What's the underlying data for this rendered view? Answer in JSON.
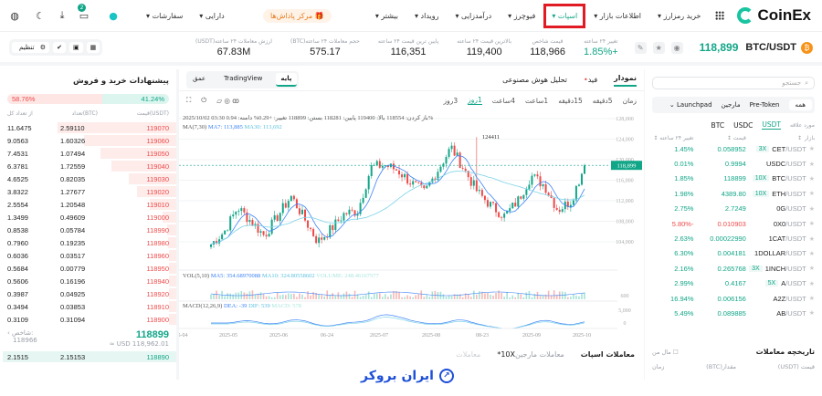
{
  "nav": {
    "brand": "CoinEx",
    "items": [
      "خرید رمزارز",
      "اطلاعات بازار",
      "اسپات",
      "فیوچرز",
      "درآمدزایی",
      "رویداد",
      "بیشتر"
    ],
    "highlighted": "اسپات",
    "rewards": "مرکز پاداش‌ها",
    "assets": "دارایی",
    "orders": "سفارشات",
    "notif_count": "2",
    "icons": [
      "grid-icon",
      "gift-icon",
      "avatar-icon",
      "chat-icon",
      "download-icon",
      "moon-icon",
      "globe-icon"
    ]
  },
  "ticker": {
    "pair": "BTC/USDT",
    "last": "118,899",
    "stats": [
      {
        "label": "تغییر ۲۴ ساعته",
        "value": "+1.85%"
      },
      {
        "label": "قیمت شاخص",
        "value": "118,966"
      },
      {
        "label": "بالاترین قیمت ۲۴ ساعته",
        "value": "119,400"
      },
      {
        "label": "پایین ترین قیمت ۲۴ ساعته",
        "value": "116,351"
      },
      {
        "label": "حجم معاملات ۲۴ ساعته(BTC)",
        "value": "575.17"
      },
      {
        "label": "ارزش معاملات ۲۴ ساعته(USDT)",
        "value": "67.83M"
      }
    ],
    "settings": "تنظیم"
  },
  "book": {
    "title": "پیشنهادات خرید و فروش",
    "sell_ratio": "58.76%",
    "buy_ratio": "41.24%",
    "headers": [
      "قیمت(USDT)",
      "تعداد(BTC)",
      "از تعداد کل"
    ],
    "asks": [
      [
        "119070",
        "2.59110",
        "11.6475"
      ],
      [
        "119060",
        "1.60326",
        "9.0563"
      ],
      [
        "119050",
        "1.07494",
        "7.4531"
      ],
      [
        "119040",
        "1.72559",
        "6.3781"
      ],
      [
        "119030",
        "0.82035",
        "4.6525"
      ],
      [
        "119020",
        "1.27677",
        "3.8322"
      ],
      [
        "119010",
        "1.20548",
        "2.5554"
      ],
      [
        "119000",
        "0.49609",
        "1.3499"
      ],
      [
        "118990",
        "0.05784",
        "0.8538"
      ],
      [
        "118980",
        "0.19235",
        "0.7960"
      ],
      [
        "118960",
        "0.03517",
        "0.6036"
      ],
      [
        "118950",
        "0.00779",
        "0.5684"
      ],
      [
        "118940",
        "0.16196",
        "0.5606"
      ],
      [
        "118920",
        "0.04925",
        "0.3987"
      ],
      [
        "118910",
        "0.03853",
        "0.3494"
      ],
      [
        "118900",
        "0.31094",
        "0.3109"
      ]
    ],
    "mid": "118899",
    "mid_usd": "≈ USD 118,962.01",
    "index_label": "شاخص:",
    "index": "118966",
    "bids": [
      [
        "118890",
        "2.15153",
        "2.1515"
      ]
    ]
  },
  "chart": {
    "tabs": [
      "نمودار",
      "فید",
      "تحلیل هوش مصنوعی"
    ],
    "types": [
      "پایه",
      "TradingView",
      "عمق"
    ],
    "timeframes": [
      "زمان",
      "5دقیقه",
      "15دقیقه",
      "1ساعت",
      "4ساعت",
      "1روز",
      "3روز"
    ],
    "active_tf": "1روز",
    "ohlc": "2025/10/02 03:30  باز کردن: 118554  بالا: 119400  پایین: 118281  بستن: 118899  تغییر: +0.29%  دامنه: 0.94%",
    "ma": {
      "label": "MA(7,30)",
      "ma7": "MA7: 113,885",
      "ma30": "MA30: 113,692"
    },
    "vol": {
      "label": "VOL(5,10)",
      "ma5": "MA5: 354.68970088",
      "ma10": "MA10: 324.80558602",
      "volume": "VOLUME: 248.46167577"
    },
    "macd": {
      "label": "MACD(12,26,9)",
      "dea": "DEA: -39",
      "dif": "DIF: 539",
      "macd": "MACD: 578"
    },
    "high_label": "124411",
    "last_label": "118,899"
  },
  "chart_data": {
    "type": "candlestick",
    "y_ticks": [
      128000,
      124000,
      120000,
      116000,
      112000,
      108000,
      104000
    ],
    "ylim": [
      100000,
      128000
    ],
    "x_ticks": [
      "5-04",
      "2025-05",
      "2025-06",
      "06-24",
      "2025-07",
      "2025-08",
      "08-23",
      "2025-09",
      "2025-10"
    ],
    "close_path": [
      103500,
      106000,
      110700,
      108000,
      105200,
      109000,
      112900,
      108500,
      104000,
      106500,
      109500,
      110000,
      118500,
      119000,
      117900,
      115500,
      113600,
      118000,
      122400,
      118000,
      113600,
      111000,
      109000,
      112000,
      116900,
      115000,
      110200,
      112000,
      118899
    ],
    "high": 124411,
    "last": 118899,
    "vol_ticks": [
      "600"
    ],
    "macd_ticks": [
      "5,000",
      "0"
    ],
    "colors": {
      "up": "#12a688",
      "down": "#ef4a4a",
      "ma7": "#3b82f6",
      "ma30": "#7dd3e8"
    }
  },
  "markets": {
    "search": "جستجو",
    "tabs": [
      "همه",
      "Pre-Token",
      "مارجین",
      "Launchpad"
    ],
    "quotes": [
      "مورد علاقه",
      "USDT",
      "USDC",
      "BTC"
    ],
    "active_quote": "USDT",
    "headers": [
      "بازار",
      "قیمت",
      "تغییر ۲۴ ساعته"
    ],
    "rows": [
      [
        "CET",
        "/USDT",
        "3X",
        "0.058952",
        "1.45%"
      ],
      [
        "USDC",
        "/USDT",
        "",
        "0.9994",
        "0.01%"
      ],
      [
        "BTC",
        "/USDT",
        "10X",
        "118899",
        "1.85%"
      ],
      [
        "ETH",
        "/USDT",
        "10X",
        "4389.80",
        "1.98%"
      ],
      [
        "0G",
        "/USDT",
        "",
        "2.7249",
        "2.75%"
      ],
      [
        "0X0",
        "/USDT",
        "",
        "0.010903",
        "-5.80%"
      ],
      [
        "1CAT",
        "/USDT",
        "",
        "0.00022990",
        "2.63%"
      ],
      [
        "1DOLLAR",
        "/USDT",
        "",
        "0.004181",
        "6.30%"
      ],
      [
        "1INCH",
        "/USDT",
        "3X",
        "0.265768",
        "2.16%"
      ],
      [
        "A",
        "/USDT",
        "5X",
        "0.4167",
        "2.99%"
      ],
      [
        "A2Z",
        "/USDT",
        "",
        "0.006156",
        "16.94%"
      ],
      [
        "AB",
        "/USDT",
        "",
        "0.089885",
        "5.49%"
      ]
    ]
  },
  "trade_tabs": [
    "معاملات اسپات",
    "معاملات مارجین",
    "10X*",
    "معاملات"
  ],
  "history": {
    "title": "تاریخچه معاملات",
    "mine": "مال من",
    "headers": [
      "قیمت (USDT)",
      "مقدار(BTC)",
      "زمان"
    ]
  },
  "watermark": "ایران بروکر"
}
